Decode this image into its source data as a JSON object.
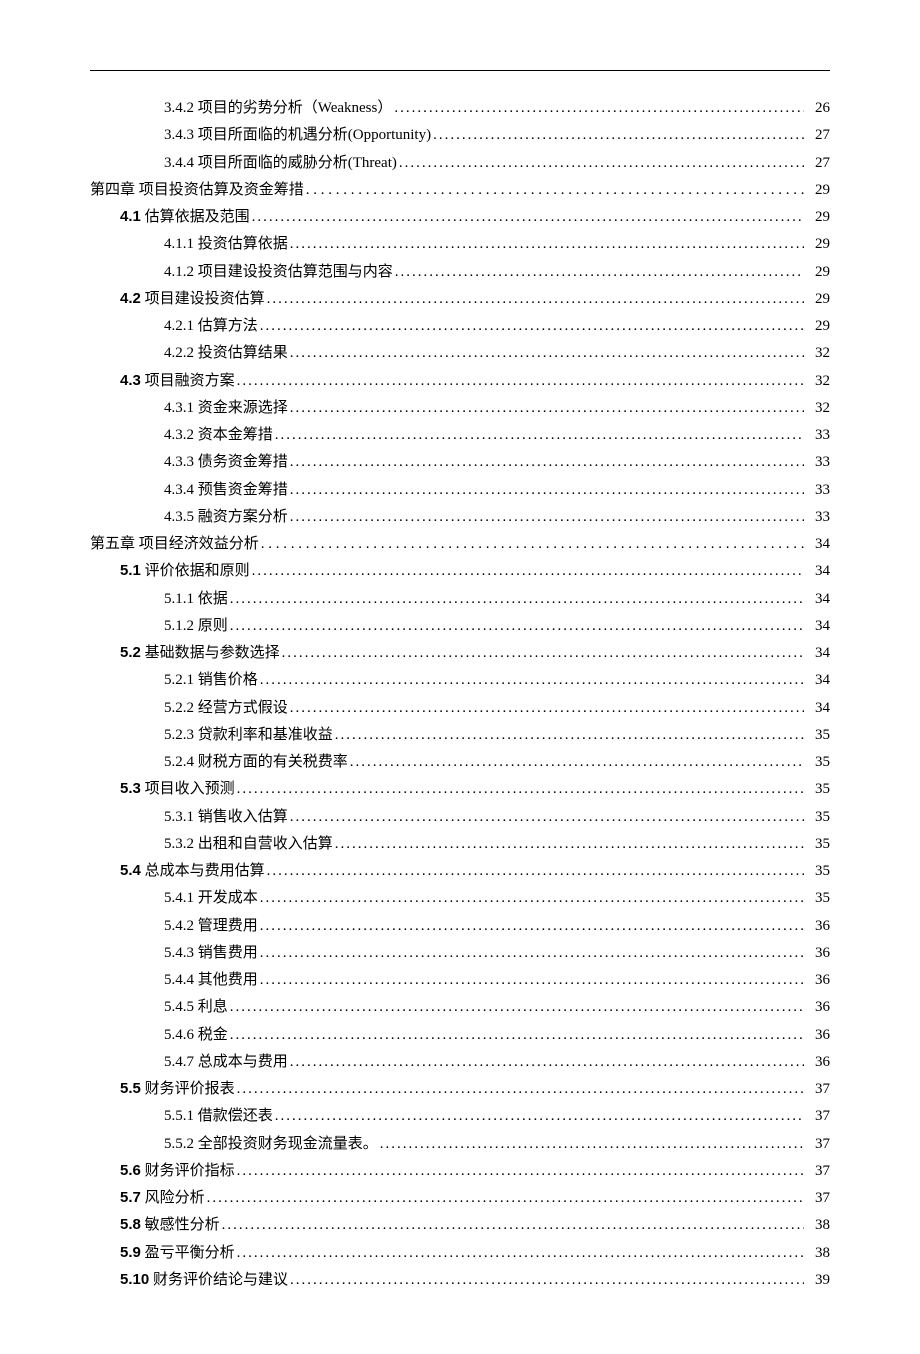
{
  "toc": [
    {
      "indent": 2,
      "label": "3.4.2 项目的劣势分析（Weakness）",
      "page": "26",
      "dots": "dense"
    },
    {
      "indent": 2,
      "label": "3.4.3 项目所面临的机遇分析(Opportunity)",
      "page": "27",
      "dots": "dense"
    },
    {
      "indent": 2,
      "label": "3.4.4 项目所面临的威胁分析(Threat)",
      "page": "27",
      "dots": "dense"
    },
    {
      "indent": 0,
      "label": "第四章  项目投资估算及资金筹措",
      "page": "29",
      "dots": "sparse",
      "chapter": true
    },
    {
      "indent": 1,
      "label_html": "<span class='bold-num'>4.1</span> 估算依据及范围",
      "page": "29",
      "dots": "dense"
    },
    {
      "indent": 2,
      "label": "4.1.1 投资估算依据",
      "page": "29",
      "dots": "dense"
    },
    {
      "indent": 2,
      "label": "4.1.2 项目建设投资估算范围与内容",
      "page": "29",
      "dots": "dense"
    },
    {
      "indent": 1,
      "label_html": "<span class='bold-num'>4.2</span> 项目建设投资估算",
      "page": "29",
      "dots": "dense"
    },
    {
      "indent": 2,
      "label": "4.2.1 估算方法",
      "page": "29",
      "dots": "dense"
    },
    {
      "indent": 2,
      "label": "4.2.2 投资估算结果",
      "page": "32",
      "dots": "dense"
    },
    {
      "indent": 1,
      "label_html": "<span class='bold-num'>4.3</span> 项目融资方案",
      "page": "32",
      "dots": "dense"
    },
    {
      "indent": 2,
      "label": "4.3.1 资金来源选择",
      "page": "32",
      "dots": "dense"
    },
    {
      "indent": 2,
      "label": "4.3.2 资本金筹措",
      "page": "33",
      "dots": "dense"
    },
    {
      "indent": 2,
      "label": "4.3.3 债务资金筹措",
      "page": "33",
      "dots": "dense"
    },
    {
      "indent": 2,
      "label": "4.3.4 预售资金筹措",
      "page": "33",
      "dots": "dense"
    },
    {
      "indent": 2,
      "label": "4.3.5 融资方案分析",
      "page": "33",
      "dots": "dense"
    },
    {
      "indent": 0,
      "label": "第五章  项目经济效益分析",
      "page": "34",
      "dots": "sparse",
      "chapter": true
    },
    {
      "indent": 1,
      "label_html": "<span class='bold-num'>5.1</span> 评价依据和原则",
      "page": "34",
      "dots": "dense"
    },
    {
      "indent": 2,
      "label": "5.1.1 依据",
      "page": "34",
      "dots": "dense"
    },
    {
      "indent": 2,
      "label": "5.1.2 原则",
      "page": "34",
      "dots": "dense"
    },
    {
      "indent": 1,
      "label_html": "<span class='bold-num'>5.2</span> 基础数据与参数选择",
      "page": "34",
      "dots": "dense"
    },
    {
      "indent": 2,
      "label": "5.2.1 销售价格",
      "page": "34",
      "dots": "dense"
    },
    {
      "indent": 2,
      "label": "5.2.2 经营方式假设",
      "page": "34",
      "dots": "dense"
    },
    {
      "indent": 2,
      "label": "5.2.3 贷款利率和基准收益",
      "page": "35",
      "dots": "dense"
    },
    {
      "indent": 2,
      "label": "5.2.4 财税方面的有关税费率",
      "page": "35",
      "dots": "dense"
    },
    {
      "indent": 1,
      "label_html": "<span class='bold-num'>5.3</span> 项目收入预测",
      "page": "35",
      "dots": "dense"
    },
    {
      "indent": 2,
      "label": "5.3.1 销售收入估算",
      "page": "35",
      "dots": "dense"
    },
    {
      "indent": 2,
      "label": "5.3.2 出租和自营收入估算",
      "page": "35",
      "dots": "dense"
    },
    {
      "indent": 1,
      "label_html": "<span class='bold-num'>5.4</span> 总成本与费用估算",
      "page": "35",
      "dots": "dense"
    },
    {
      "indent": 2,
      "label": "5.4.1 开发成本",
      "page": "35",
      "dots": "dense"
    },
    {
      "indent": 2,
      "label": "5.4.2 管理费用",
      "page": "36",
      "dots": "dense"
    },
    {
      "indent": 2,
      "label": "5.4.3 销售费用",
      "page": "36",
      "dots": "dense"
    },
    {
      "indent": 2,
      "label": "5.4.4 其他费用",
      "page": "36",
      "dots": "dense"
    },
    {
      "indent": 2,
      "label": "5.4.5 利息",
      "page": "36",
      "dots": "dense"
    },
    {
      "indent": 2,
      "label": "5.4.6 税金",
      "page": "36",
      "dots": "dense"
    },
    {
      "indent": 2,
      "label": "5.4.7 总成本与费用",
      "page": "36",
      "dots": "dense"
    },
    {
      "indent": 1,
      "label_html": "<span class='bold-num'>5.5</span> 财务评价报表",
      "page": "37",
      "dots": "dense"
    },
    {
      "indent": 2,
      "label": "5.5.1 借款偿还表",
      "page": "37",
      "dots": "dense"
    },
    {
      "indent": 2,
      "label": "5.5.2 全部投资财务现金流量表。",
      "page": "37",
      "dots": "dense"
    },
    {
      "indent": 1,
      "label_html": "<span class='bold-num'>5.6</span> 财务评价指标",
      "page": "37",
      "dots": "dense"
    },
    {
      "indent": 1,
      "label_html": "<span class='bold-num'>5.7</span> 风险分析",
      "page": "37",
      "dots": "dense"
    },
    {
      "indent": 1,
      "label_html": "<span class='bold-num'>5.8</span> 敏感性分析",
      "page": "38",
      "dots": "dense"
    },
    {
      "indent": 1,
      "label_html": "<span class='bold-num'>5.9</span> 盈亏平衡分析",
      "page": "38",
      "dots": "dense"
    },
    {
      "indent": 1,
      "label_html": "<span class='bold-num'>5.10</span> 财务评价结论与建议",
      "page": "39",
      "dots": "dense"
    }
  ]
}
